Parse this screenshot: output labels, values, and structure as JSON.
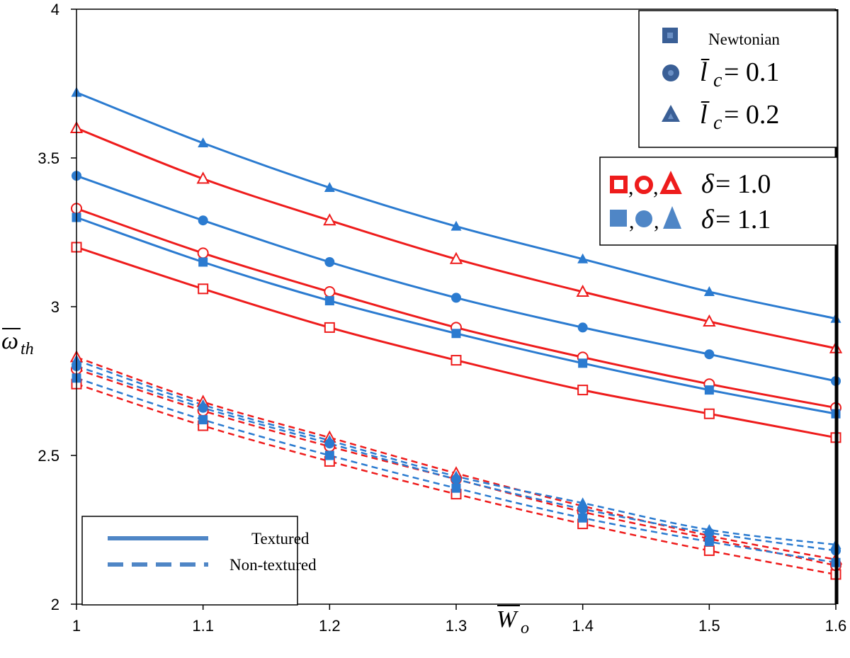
{
  "chart_data": {
    "type": "line",
    "x": [
      1,
      1.1,
      1.2,
      1.3,
      1.4,
      1.5,
      1.6
    ],
    "xlim": [
      1,
      1.6
    ],
    "ylim": [
      2,
      4
    ],
    "x_ticks": [
      "1",
      "1.1",
      "1.2",
      "1.3",
      "1.4",
      "1.5",
      "1.6"
    ],
    "y_ticks": [
      "2",
      "2.5",
      "3",
      "3.5",
      "4"
    ],
    "ylabel": "ω̄th",
    "xlabel": "W̄o",
    "grid": false,
    "colors": {
      "delta_1_0": "#ee1c1c",
      "delta_1_1": "#2b7bd0",
      "legend_marker": "#3a5f96"
    },
    "series": [
      {
        "name": "Textured, Newtonian, δ = 1.0",
        "marker": "square",
        "filled": false,
        "delta": "1.0",
        "style": "solid",
        "values": [
          3.2,
          3.06,
          2.93,
          2.82,
          2.72,
          2.64,
          2.56
        ]
      },
      {
        "name": "Textured, l̄c = 0.1, δ = 1.0",
        "marker": "circle",
        "filled": false,
        "delta": "1.0",
        "style": "solid",
        "values": [
          3.33,
          3.18,
          3.05,
          2.93,
          2.83,
          2.74,
          2.66
        ]
      },
      {
        "name": "Textured, l̄c = 0.2, δ = 1.0",
        "marker": "triangle",
        "filled": false,
        "delta": "1.0",
        "style": "solid",
        "values": [
          3.6,
          3.43,
          3.29,
          3.16,
          3.05,
          2.95,
          2.86
        ]
      },
      {
        "name": "Textured, Newtonian, δ = 1.1",
        "marker": "square",
        "filled": true,
        "delta": "1.1",
        "style": "solid",
        "values": [
          3.3,
          3.15,
          3.02,
          2.91,
          2.81,
          2.72,
          2.64
        ]
      },
      {
        "name": "Textured, l̄c = 0.1, δ = 1.1",
        "marker": "circle",
        "filled": true,
        "delta": "1.1",
        "style": "solid",
        "values": [
          3.44,
          3.29,
          3.15,
          3.03,
          2.93,
          2.84,
          2.75
        ]
      },
      {
        "name": "Textured, l̄c = 0.2, δ = 1.1",
        "marker": "triangle",
        "filled": true,
        "delta": "1.1",
        "style": "solid",
        "values": [
          3.72,
          3.55,
          3.4,
          3.27,
          3.16,
          3.05,
          2.96
        ]
      },
      {
        "name": "Non-textured, Newtonian, δ = 1.0",
        "marker": "square",
        "filled": false,
        "delta": "1.0",
        "style": "dashed",
        "values": [
          2.74,
          2.6,
          2.48,
          2.37,
          2.27,
          2.18,
          2.1
        ]
      },
      {
        "name": "Non-textured, l̄c = 0.1, δ = 1.0",
        "marker": "circle",
        "filled": false,
        "delta": "1.0",
        "style": "dashed",
        "values": [
          2.79,
          2.65,
          2.53,
          2.42,
          2.31,
          2.22,
          2.13
        ]
      },
      {
        "name": "Non-textured, l̄c = 0.2, δ = 1.0",
        "marker": "triangle",
        "filled": false,
        "delta": "1.0",
        "style": "dashed",
        "values": [
          2.83,
          2.68,
          2.56,
          2.44,
          2.33,
          2.23,
          2.15
        ]
      },
      {
        "name": "Non-textured, Newtonian, δ = 1.1",
        "marker": "square",
        "filled": true,
        "delta": "1.1",
        "style": "dashed",
        "values": [
          2.76,
          2.62,
          2.5,
          2.39,
          2.29,
          2.21,
          2.14
        ]
      },
      {
        "name": "Non-textured, l̄c = 0.1, δ = 1.1",
        "marker": "circle",
        "filled": true,
        "delta": "1.1",
        "style": "dashed",
        "values": [
          2.8,
          2.66,
          2.54,
          2.42,
          2.32,
          2.24,
          2.18
        ]
      },
      {
        "name": "Non-textured, l̄c = 0.2, δ = 1.1",
        "marker": "triangle",
        "filled": true,
        "delta": "1.1",
        "style": "dashed",
        "values": [
          2.82,
          2.67,
          2.55,
          2.43,
          2.34,
          2.25,
          2.2
        ]
      }
    ],
    "legend_model": {
      "newtonian": "Newtonian",
      "lc_label": "l̄",
      "lc_sub": "c",
      "eq_01": " = 0.1",
      "eq_02": " = 0.2"
    },
    "legend_delta": {
      "symbol": "δ",
      "comma": ",",
      "eq_10": " = 1.0",
      "eq_11": " = 1.1"
    },
    "legend_style": {
      "textured": "Textured",
      "non_textured": "Non-textured"
    },
    "axis_symbols": {
      "omega": "ω",
      "omega_sub": "th",
      "w": "W",
      "w_sub": "o"
    }
  }
}
